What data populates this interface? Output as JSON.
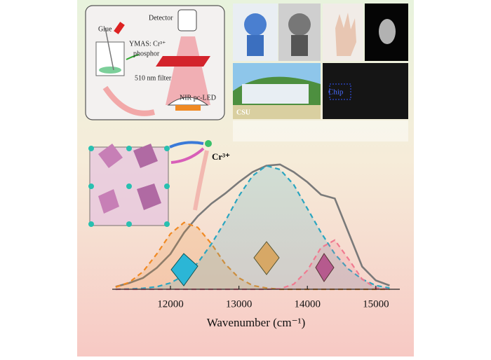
{
  "chart_data": {
    "type": "line",
    "xlabel": "Wavenumber (cm⁻¹)",
    "x": [
      11200,
      11400,
      11600,
      11800,
      12000,
      12200,
      12400,
      12600,
      12800,
      13000,
      13200,
      13400,
      13600,
      13800,
      14000,
      14200,
      14400,
      14600,
      14800,
      15000,
      15200
    ],
    "series": [
      {
        "color": "#7a7a7a",
        "dashed": false,
        "values": [
          0.02,
          0.05,
          0.09,
          0.17,
          0.28,
          0.45,
          0.58,
          0.68,
          0.76,
          0.85,
          0.93,
          0.98,
          0.99,
          0.93,
          0.85,
          0.75,
          0.72,
          0.45,
          0.18,
          0.07,
          0.03
        ]
      },
      {
        "color": "#f08a24",
        "dashed": true,
        "values": [
          0.017,
          0.055,
          0.14,
          0.28,
          0.44,
          0.53,
          0.49,
          0.36,
          0.2,
          0.09,
          0.03,
          0.01,
          0,
          0,
          0,
          0,
          0,
          0,
          0,
          0,
          0
        ]
      },
      {
        "color": "#2aa5c0",
        "dashed": true,
        "values": [
          0,
          0.003,
          0.008,
          0.02,
          0.05,
          0.11,
          0.21,
          0.36,
          0.54,
          0.74,
          0.9,
          0.98,
          0.95,
          0.83,
          0.64,
          0.45,
          0.28,
          0.16,
          0.08,
          0.03,
          0.01
        ]
      },
      {
        "color": "#f07a90",
        "dashed": true,
        "values": [
          0,
          0,
          0,
          0,
          0,
          0,
          0,
          0,
          0,
          0,
          0,
          0,
          0.004,
          0.04,
          0.15,
          0.33,
          0.39,
          0.24,
          0.08,
          0.01,
          0
        ]
      }
    ],
    "xlim": [
      11150,
      15350
    ],
    "ylim": [
      0,
      1
    ],
    "xticks": [
      12000,
      13000,
      14000,
      15000
    ],
    "annotations": [
      "Glue",
      "YMAS: Cr³⁺",
      "phosphor",
      "Detector",
      "510 nm filter",
      "NIR pc-LED",
      "Cr³⁺",
      "Chip",
      "CSU"
    ]
  }
}
